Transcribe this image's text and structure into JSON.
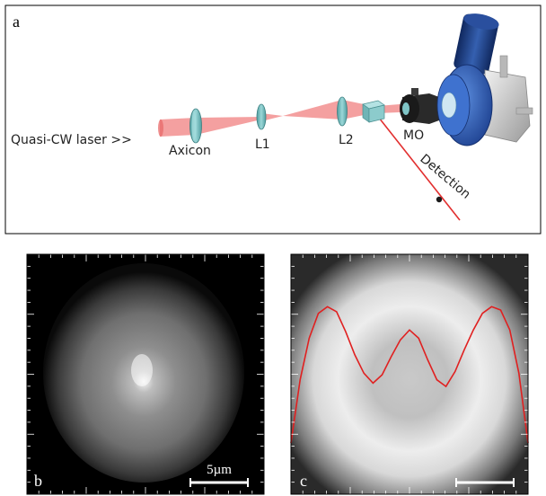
{
  "panel_a": {
    "letter": "a",
    "labels": {
      "laser": "Quasi-CW laser >>",
      "axicon": "Axicon",
      "l1": "L1",
      "l2": "L2",
      "mo": "MO",
      "detection": "Detection"
    }
  },
  "panel_b": {
    "letter": "b",
    "scalebar_label": "5µm"
  },
  "panel_c": {
    "letter": "c",
    "profile_values": [
      0.0,
      0.38,
      0.63,
      0.78,
      0.82,
      0.79,
      0.67,
      0.53,
      0.42,
      0.36,
      0.41,
      0.52,
      0.62,
      0.68,
      0.63,
      0.5,
      0.38,
      0.34,
      0.43,
      0.56,
      0.68,
      0.78,
      0.82,
      0.8,
      0.68,
      0.42,
      0.0
    ]
  },
  "colors": {
    "beam": "#f08080",
    "beam_line": "#e23030",
    "profile_line": "#e02020",
    "optic": "#7fc4c6",
    "blue_housing": "#2b5fb8",
    "dark_blue": "#18367a",
    "metal": "#c9c9c9"
  }
}
